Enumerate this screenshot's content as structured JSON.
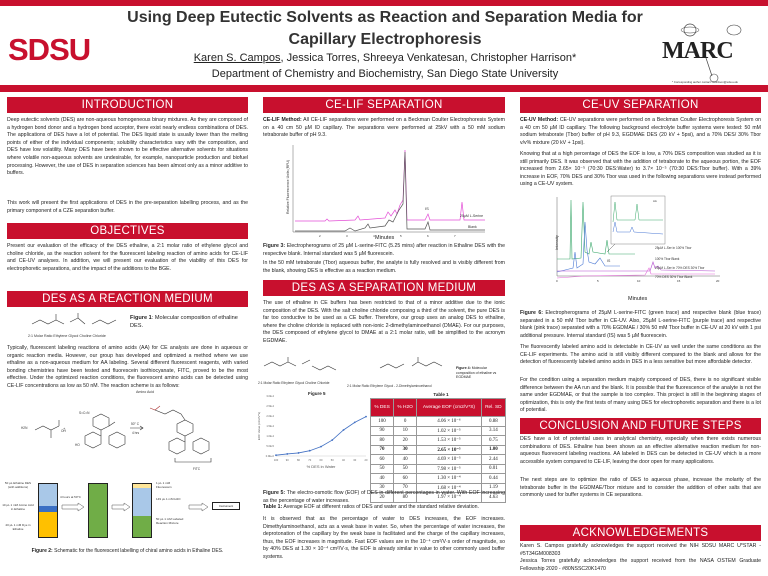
{
  "header": {
    "title_line1": "Using Deep Eutectic Solvents as Reaction and Separation Media for",
    "title_line2": "Capillary Electrophoresis",
    "presenter": "Karen S. Campos",
    "coauthors": ", Jessica Torres, Shreeya Venkatesan, Christopher Harrison*",
    "department": "Department of Chemistry and Biochemistry, San Diego State University",
    "left_logo": "SDSU",
    "right_logo": "MARC",
    "corresponding": "* Corresponding author contact: charrison@sdsu.edu",
    "brand_color": "#c8102e"
  },
  "introduction": {
    "heading": "INTRODUCTION",
    "p1": "Deep eutectic solvents (DES) are non-aqueous homogeneous binary mixtures. As they are composed of a hydrogen bond donor and a hydrogen bond acceptor, there exist nearly endless combinations of DES. The applications of DES have a lot of potential. The DES liquid state is usually lower than the melting points of either of the individual components; solubility characteristics vary with the composition, and DES have low volatility. Many DES have been shown to be effective alternative solvents for situations where volatile non-aqueous solvents are undesirable, for example, nanoparticle production and biofuel processing. However, the use of DES in separation sciences has been almost only as a minor additive to buffers.",
    "p2": "This work will present the first applications of DES in the pre-separation labelling process, and as the primary component of a CZE separation buffer."
  },
  "objectives": {
    "heading": "OBJECTIVES",
    "p1": "Present our evaluation of the efficacy of the DES ethaline, a 2:1 molar ratio of ethylene glycol and choline chloride, as the reaction solvent for the fluorescent labeling reaction of amino acids for CE-LIF and CE-UV analyses. In addition, we will present our evaluation of the viability of this DES for electrophoretic separations, and the impact of the additions to the BGE."
  },
  "reaction": {
    "heading": "DES AS A REACTION MEDIUM",
    "fig1_label": "Figure 1",
    "fig1_text": ": Molecular composition of ethaline DES.",
    "fig1_structure_caption": "2:1 Molar Ratio Ethylene Glycol Choline Chloride",
    "p1": "Typically, fluorescent labeling reactions of amino acids (AA) for CE analysis are done in aqueous or organic reaction media. However, our group has developed and optimized a method where we use ethaline as a non-aqueous medium for AA labeling. Several different fluorescent reagents, with varied bonding chemistries have been tested and fluorescein isothiocyanate, FITC, proved to be the most effective. Under the optimized reaction conditions, the fluorescent amino acids can be detected using CE-LIF concentrations as low as 50 nM. The reaction scheme is as follows:",
    "scheme": {
      "amino_acid": "Amino Acid",
      "conditions_temp": "50° C",
      "conditions_time": "4 hrs",
      "product": "FITC",
      "ncs": "S=C=N",
      "h2n": "H2N",
      "oh": "OH",
      "ho": "HO"
    },
    "schematic": {
      "tube1_top": "50 µL Ethaline DES (with additions)",
      "tube1_mid": "10 µL 1 mM Amino Acid in Ethaline",
      "tube1_bot": "40 µL 1 mM Dye in Ethaline",
      "step1": "4 hours at 50°C",
      "tube3_top": "1 µL 1 mM Fluorescein",
      "tube3_mid": "149 µL 1 mM H2O",
      "tube3_bot": "50 µL 1 mM Labeled Reaction Mixture",
      "instrument": "Instrument",
      "colors": {
        "blue_light": "#a9c8e8",
        "blue_dark": "#3a6fc4",
        "yellow": "#ffc000",
        "green": "#70ad47",
        "pale": "#ffe699"
      }
    },
    "fig2_label": "Figure 2:",
    "fig2_text": " Schematic for the fluorescent labelling of chiral amino acids in Ethaline DES."
  },
  "celif": {
    "heading": "CE-LIF SEPARATION",
    "method_label": "CE-LIF Method:",
    "method_text": " All CE-LIF separations were performed on a Beckman Coulter Electrophoresis System on a 40 cm 50 µM ID capillary. The separations were performed at 25kV with a 50 mM sodium tetraborate buffer of pH 9.3.",
    "chart": {
      "ylabel": "Relative Fluorescence Units (RFU)",
      "xlabel": "Minutes",
      "xticks": [
        "2",
        "3",
        "4",
        "5",
        "6",
        "7"
      ],
      "is_label": "IS",
      "trace1": "25µM L-Serine",
      "trace2": "Blank",
      "colors": {
        "sample": "#e34fd6",
        "blank": "#555555"
      }
    },
    "fig3_label": "Figure 3:",
    "fig3_text": " Electropherograms of 25 µM L-serine-FITC (5.25 mins) after reaction in Ethaline DES with the respective blank. Internal standard was 5 µM fluorescein.",
    "p1": "In the 50 mM tetraborate (Tbor) aqueous buffer, the analyte is fully resolved and is visibly different from the blank, showing DES is effective as a reaction medium."
  },
  "separation": {
    "heading": "DES AS A SEPARATION MEDIUM",
    "p1": "The use of ethaline in CE buffers has been restricted to that of a minor additive due to the ionic composition of the DES. With the salt choline chloride composing a third of the solvent, the pure DES is far too conductive to be used as a CE buffer. Therefore, our group uses an analog DES to ethaline, where the choline chloride is replaced with non-ionic 2-dimethylaminoethanol (DMAE). For our purposes, the DES composed of ethylene glycol to DMAE at a 2:1 molar ratio, will be simplified to the acronym EGDMAE.",
    "struct1_caption": "2:1 Molar Ratio Ethylene Glycol Choline Chloride",
    "struct2_caption": "2:1 Molar Ratio Ethylene Glycol - 2-Dimethylaminoethanol",
    "fig4_label": "Figure 4:",
    "fig4_text": " Molecular composition of ethaline vs EGDMAE",
    "table_title": "Table 1",
    "table": {
      "headers": [
        "% DES",
        "% H2O",
        "Average EOF (cm2/V*S)",
        "Rel. SD"
      ],
      "rows": [
        [
          "100",
          "0",
          "4.06 × 10⁻⁶",
          "0.88"
        ],
        [
          "90",
          "10",
          "1.02 × 10⁻⁵",
          "3.14"
        ],
        [
          "80",
          "20",
          "1.53 × 10⁻⁵",
          "0.75"
        ],
        [
          "70",
          "30",
          "2.65 × 10⁻⁵",
          "1.00"
        ],
        [
          "60",
          "40",
          "4.69 × 10⁻⁵",
          "2.44"
        ],
        [
          "50",
          "50",
          "7.98 × 10⁻⁵",
          "0.01"
        ],
        [
          "40",
          "60",
          "1.30 × 10⁻⁴",
          "0.44"
        ],
        [
          "30",
          "70",
          "1.68 × 10⁻⁴",
          "1.19"
        ],
        [
          "20",
          "80",
          "1.97 × 10⁻⁴",
          "4.63"
        ]
      ],
      "bold_row": "70"
    },
    "fig5_label": "Figure 5:",
    "fig5_text": " The electro-osmotic flow (EOF) of DES in different percentages in water. With EOF increasing as the percentage of water increases.",
    "table1_label": "Table 1:",
    "table1_text": " Average EOF at different ratios of DES and water and the standard relative deviation.",
    "p2": "It is observed that as the percentage of water to DES increases, the EOF increases. Dimethylaminoethanol, acts as a weak base in water. So, when the percentage of water increases, the deprotonation of the capillary by the weak base is facilitated and the charge of the capillary increases, thus, the EOF increases in magnitude. Fast EOF values are in the 10⁻⁴ cm²/V·s order of magnitude, so by 40% DES at 1.30 × 10⁻⁴ cm²/V·s, the EOF is already similar in value to other commonly used buffer systems."
  },
  "chart_data": {
    "type": "line",
    "title": "Figure 5",
    "xlabel": "% DES in Water",
    "ylabel": "EOF Value (cm2/V*s)",
    "x": [
      100,
      90,
      80,
      70,
      60,
      50,
      40,
      30,
      20
    ],
    "values": [
      4.06e-06,
      1.02e-05,
      1.53e-05,
      2.65e-05,
      4.69e-05,
      7.98e-05,
      0.00013,
      0.000168,
      0.000197
    ],
    "xticks": [
      "100",
      "90",
      "80",
      "70",
      "60",
      "50",
      "40",
      "30",
      "20"
    ],
    "yticks": [
      "0.0E+0",
      "5.0E-5",
      "1.0E-4",
      "1.5E-4",
      "2.0E-4",
      "2.5E-4",
      "3.0E-4"
    ],
    "ylim": [
      0,
      0.0003
    ],
    "xlim": [
      100,
      20
    ],
    "grid": false,
    "color": "#4472c4"
  },
  "ceuv": {
    "heading": "CE-UV SEPARATION",
    "method_label": "CE-UV Method:",
    "method_text": " CE-UV separations were performed on a Beckman Coulter Electrophoresis System on a 40 cm 50 µM ID capillary. The following background electrolyte buffer systems were tested: 50 mM sodium tetraborate (Tbor) buffer of pH 9.3, EGDMAE DES (20 kV + 5psi), and a 70% DES/ 30% Tbor v/v% mixture (20 kV + 1psi).",
    "p1": "Knowing that at a high percentage of DES the EOF is low, a 70% DES composition was studied as it is still primarily DES. It was observed that with the addition of tetraborate to the aqueous portion, the EOF increased from 2.65× 10⁻⁵ (70:30 DES:Water) to 3.7× 10⁻⁵ (70:30 DES:Tbor buffer). With a 39% increase in EOF, 70% DES and 30% Tbor was used in the following separations were instead performed using a CE-UV system.",
    "chart": {
      "ylabel": "Intensity",
      "xlabel": "Minutes",
      "xticks": [
        "0",
        "5",
        "10",
        "15",
        "20"
      ],
      "is_label": "IS",
      "inset_label": "AA",
      "traces": [
        "25µM L-Ser in 100% Tbor",
        "100% Tbor Blank",
        "25µM L-Ser in 70% DES 30% Tbor",
        "70% DES 30% Tbor Blank"
      ],
      "colors": [
        "#3aa86b",
        "#4a78d4",
        "#b44fd0",
        "#e56ad8"
      ]
    },
    "fig6_label": "Figure 6:",
    "fig6_text": " Electropherograms of 25µM L-serine-FITC (green trace) and respective blank (blue trace) separated in a 50 mM Tbor buffer in CE-UV. Also, 25µM L-serine-FITC (purple trace) and respective blank (pink trace) separated with a 70% EGDMAE / 30% 50 mM Tbor buffer in CE-UV at 20 kV with 1 psi additional pressure. Internal standard (IS) was 5 µM fluorescein.",
    "p2": "The fluorescently labeled amino acid is detectable in CE-UV as well under the same conditions as the CE-LIF experiments. The amino acid is still visibly different compared to the blank and allows for the detection of fluorescently labeled amino acids in DES in a less sensitive but more affordable detector.",
    "p3": "For the condition using a separation medium majorly composed of DES, there is no significant visible difference between the AA run and the blank. It is possible that the fluorescence of the analyte is not the same under EGDMAE, or that the sample is too complex. This project is still in the beginning stages of optimization, this is only the first tests of many using DES for electrophoretic separation and there is a lot of potential."
  },
  "conclusion": {
    "heading": "CONCLUSION AND FUTURE STEPS",
    "p1": "DES have a lot of potential uses in analytical chemistry, especially when there exists numerous combinations of DES. Ethaline has been shown as an effective alternative reaction medium for non-aqueous fluorescent labeling reactions. AA labeled in DES can be detected in CE-UV which is a more accessible system compared to CE-LIF, leaving the door open for many applications.",
    "p2": "The next steps are to optimize the ratio of DES to aqueous phase, increase the molarity of the tetraborate buffer in the EGDMAE/Tbor mixture and to consider the addition of other salts that are commonly used for buffer systems in CE separations."
  },
  "acknowledgements": {
    "heading": "ACKNOWLEDGEMENTS",
    "p1": "Karen S. Campos gratefully acknowledges the support received the NIH SDSU MARC U*STAR - #5T34GM008303",
    "p2": "Jessica Torres gratefully acknowledges the support received from the NASA OSTEM Graduate Fellowship 2020 - #80NSSC20K1470"
  }
}
